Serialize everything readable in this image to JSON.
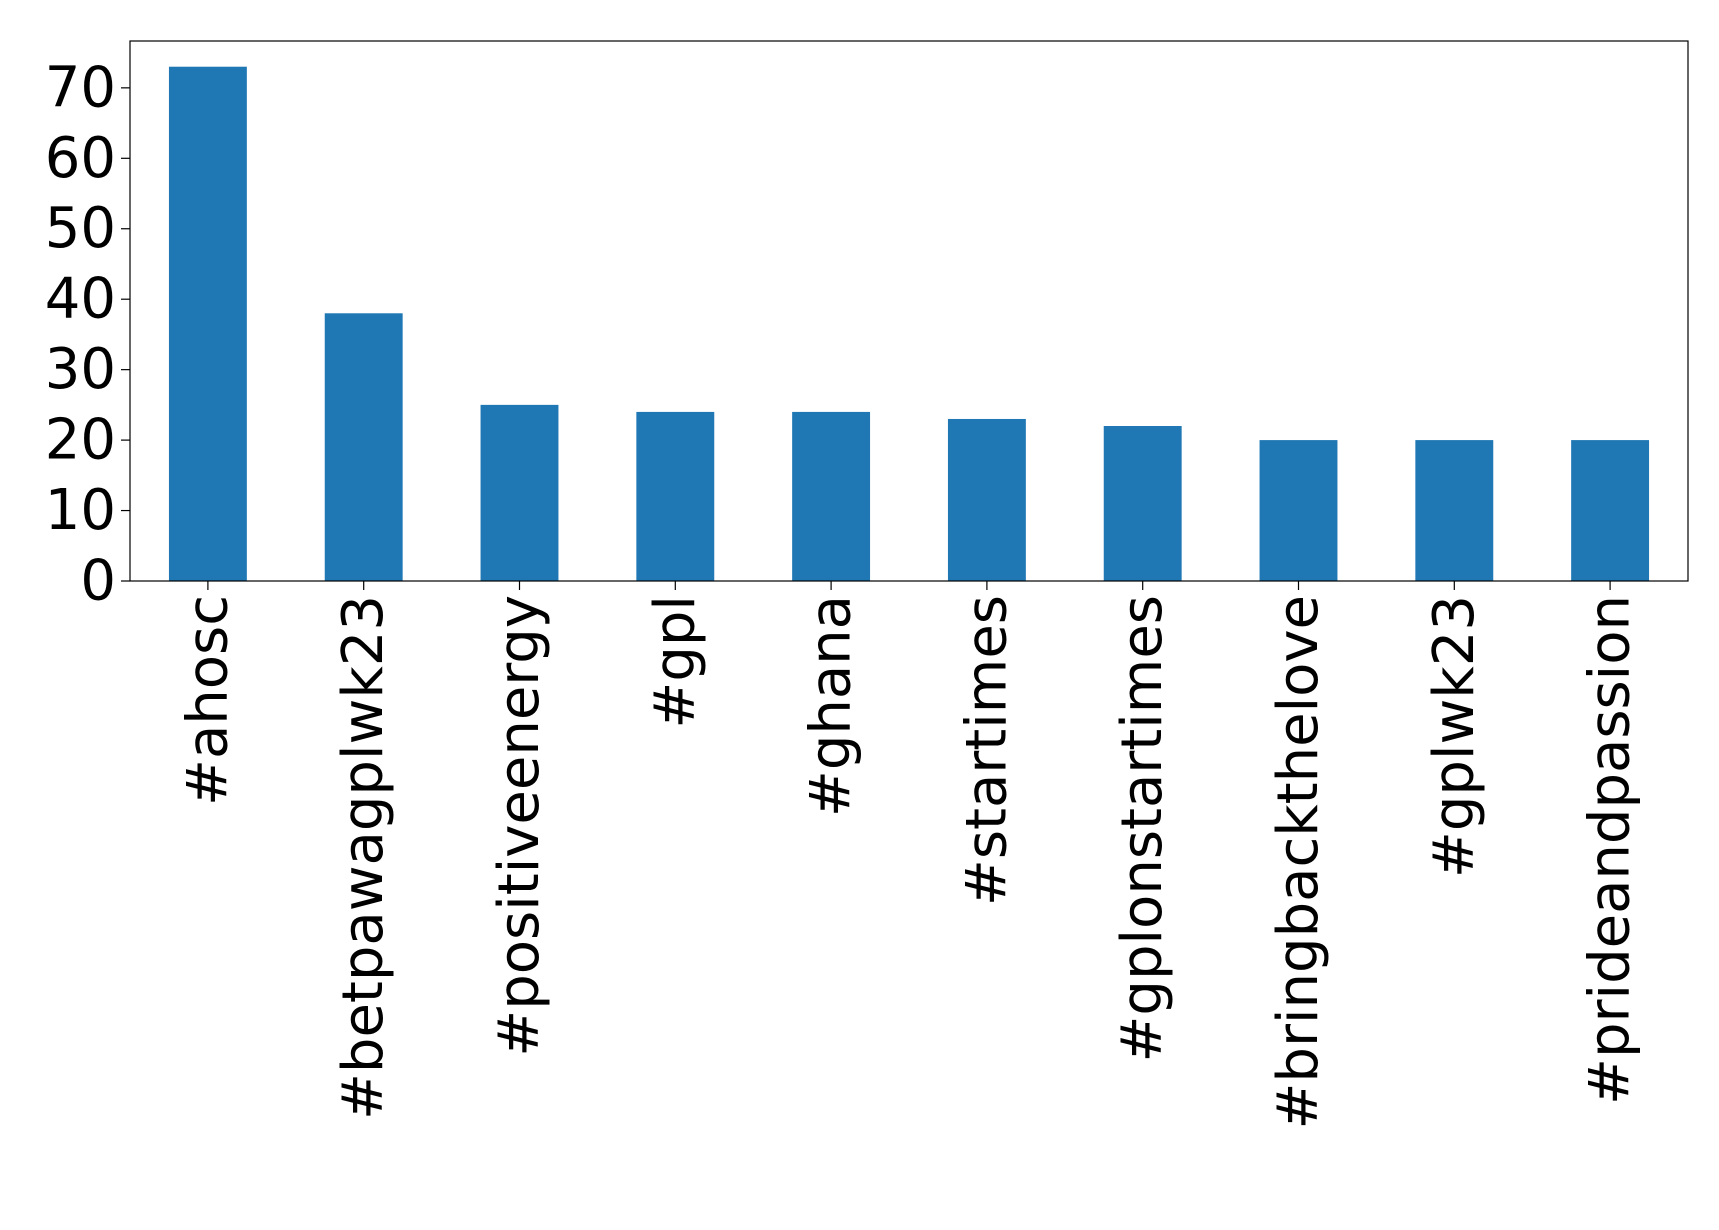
{
  "chart_data": {
    "type": "bar",
    "title": "",
    "xlabel": "",
    "ylabel": "",
    "categories": [
      "#ahosc",
      "#betpawagplwk23",
      "#positiveenergy",
      "#gpl",
      "#ghana",
      "#startimes",
      "#gplonstartimes",
      "#bringbackthelove",
      "#gplwk23",
      "#prideandpassion"
    ],
    "values": [
      73,
      38,
      25,
      24,
      24,
      23,
      22,
      20,
      20,
      20
    ],
    "ylim": [
      0,
      76.65
    ],
    "yticks": [
      0,
      10,
      20,
      30,
      40,
      50,
      60,
      70
    ],
    "bar_color": "#1f77b4",
    "grid": false,
    "legend": "none"
  }
}
